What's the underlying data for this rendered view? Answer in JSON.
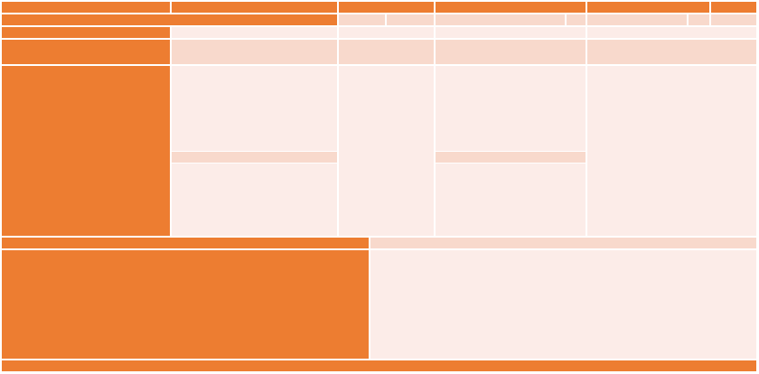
{
  "colors": {
    "accent": "#ED7D31",
    "band": "#F8D9CC",
    "fill": "#FCECE8",
    "gridline": "#FFFFFF"
  }
}
